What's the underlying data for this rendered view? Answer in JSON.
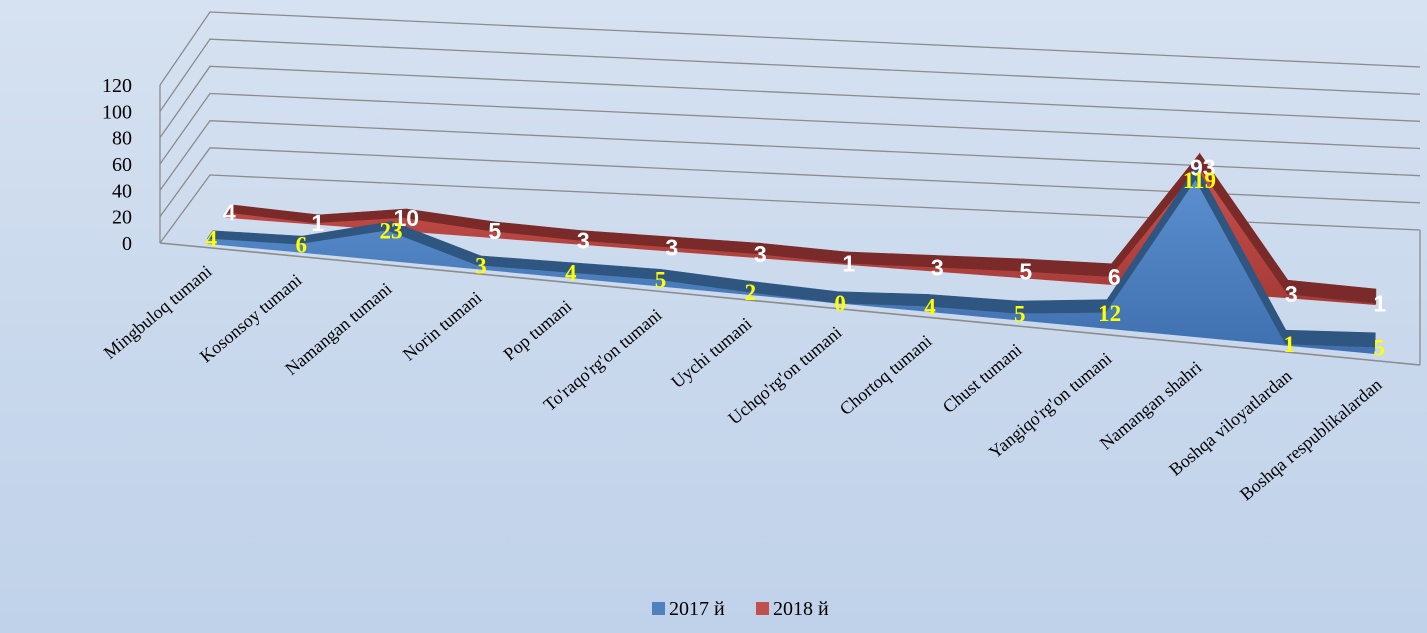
{
  "chart_data": {
    "type": "area",
    "categories": [
      "Mingbuloq tumani",
      "Kosonsoy tumani",
      "Namangan tumani",
      "Norin tumani",
      "Pop tumani",
      "To'raqo'rg'on tumani",
      "Uychi tumani",
      "Uchqo'rg'on tumani",
      "Chortoq tumani",
      "Chust tumani",
      "Yangiqo'rg'on tumani",
      "Namangan shahri",
      "Boshqa viloyatlardan",
      "Boshqa respublikalardan"
    ],
    "series": [
      {
        "name": "2017 й",
        "values": [
          4,
          6,
          23,
          3,
          4,
          5,
          2,
          0,
          4,
          5,
          12,
          119,
          1,
          5
        ]
      },
      {
        "name": "2018 й",
        "values": [
          4,
          1,
          10,
          5,
          3,
          3,
          3,
          1,
          3,
          5,
          6,
          93,
          3,
          1
        ]
      }
    ],
    "yticks": [
      0,
      20,
      40,
      60,
      80,
      100,
      120
    ],
    "ylim": [
      0,
      120
    ],
    "title": "",
    "xlabel": "",
    "ylabel": "",
    "grid": true,
    "legend": "bottom",
    "colors": {
      "2017 й": "#4f81bd",
      "2018 й": "#c0504d"
    }
  }
}
